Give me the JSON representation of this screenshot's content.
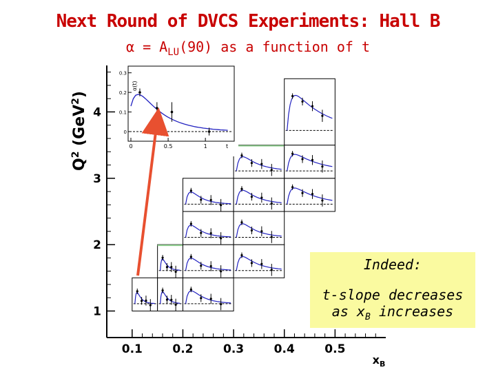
{
  "title": "Next Round of DVCS Experiments: Hall B",
  "subtitle": {
    "prefix": "α = A",
    "sub": "LU",
    "suffix": "(90) as a function of t"
  },
  "callout": {
    "heading": "Indeed:",
    "line1": "t-slope decreases",
    "line2_prefix": "as x",
    "line2_sub": "B",
    "line2_suffix": " increases"
  },
  "colors": {
    "title": "#c80000",
    "curve": "#2020c0",
    "callout_bg": "#fafaa0",
    "arrow": "#e85030",
    "panel_highlight": "#90d090"
  },
  "chart_data": {
    "type": "scatter",
    "xlabel": "x_B",
    "ylabel": "Q^2 (GeV^2)",
    "x_ticks": [
      "0.1",
      "0.2",
      "0.3",
      "0.4",
      "0.5"
    ],
    "y_ticks": [
      "1",
      "2",
      "3",
      "4"
    ],
    "xlim": [
      0.05,
      0.6
    ],
    "ylim": [
      0.6,
      4.7
    ],
    "grid": false,
    "inset": {
      "ylabel": "α(t)",
      "y_ticks": [
        "0.3",
        "0.2",
        "0.1",
        "0"
      ],
      "x_ticks": [
        "0",
        "0.5",
        "1"
      ],
      "x_label": "t"
    },
    "panels": [
      {
        "xB": [
          0.1,
          0.15
        ],
        "Q2": [
          1.0,
          1.5
        ],
        "tslope": 3.0
      },
      {
        "xB": [
          0.15,
          0.2
        ],
        "Q2": [
          1.0,
          1.5
        ],
        "tslope": 2.6
      },
      {
        "xB": [
          0.2,
          0.3
        ],
        "Q2": [
          1.0,
          1.5
        ],
        "tslope": 2.2
      },
      {
        "xB": [
          0.15,
          0.2
        ],
        "Q2": [
          1.5,
          2.0
        ],
        "tslope": 2.8
      },
      {
        "xB": [
          0.2,
          0.3
        ],
        "Q2": [
          1.5,
          2.0
        ],
        "tslope": 2.4
      },
      {
        "xB": [
          0.3,
          0.4
        ],
        "Q2": [
          1.5,
          2.0
        ],
        "tslope": 1.8
      },
      {
        "xB": [
          0.2,
          0.3
        ],
        "Q2": [
          2.0,
          2.5
        ],
        "tslope": 2.5
      },
      {
        "xB": [
          0.3,
          0.4
        ],
        "Q2": [
          2.0,
          2.5
        ],
        "tslope": 1.9
      },
      {
        "xB": [
          0.2,
          0.3
        ],
        "Q2": [
          2.5,
          3.0
        ],
        "tslope": 2.5
      },
      {
        "xB": [
          0.3,
          0.4
        ],
        "Q2": [
          2.5,
          3.0
        ],
        "tslope": 1.8
      },
      {
        "xB": [
          0.4,
          0.5
        ],
        "Q2": [
          2.5,
          3.0
        ],
        "tslope": 1.2
      },
      {
        "xB": [
          0.3,
          0.4
        ],
        "Q2": [
          3.0,
          3.5
        ],
        "tslope": 1.7
      },
      {
        "xB": [
          0.4,
          0.5
        ],
        "Q2": [
          3.0,
          3.5
        ],
        "tslope": 1.1
      },
      {
        "xB": [
          0.4,
          0.5
        ],
        "Q2": [
          3.5,
          4.5
        ],
        "tslope": 0.9
      }
    ]
  }
}
